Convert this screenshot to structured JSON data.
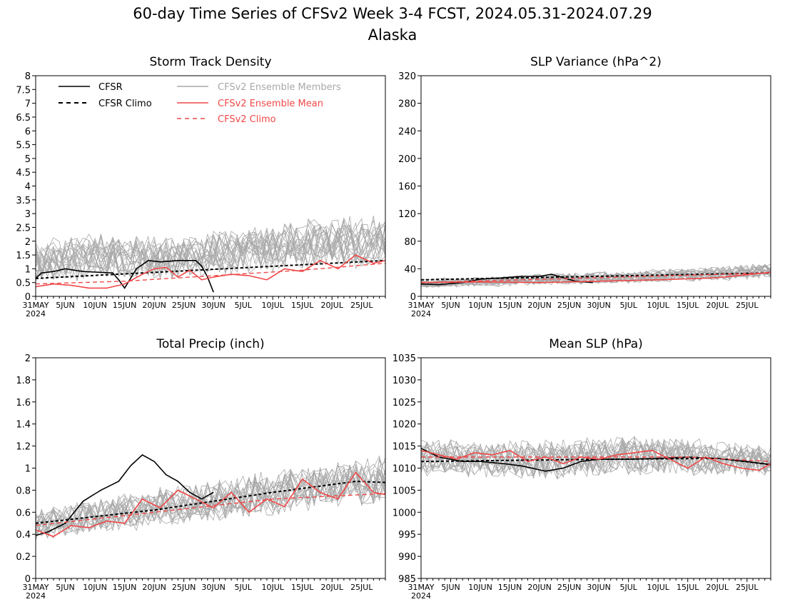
{
  "figure": {
    "title_line1": "60-day Time Series of CFSv2 Week 3-4 FCST, 2024.05.31-2024.07.29",
    "title_line2": "Alaska"
  },
  "legend": {
    "cfsr": "CFSR",
    "cfsr_climo": "CFSR Climo",
    "members": "CFSv2 Ensemble Members",
    "ens_mean": "CFSv2 Ensemble Mean",
    "cfsv2_climo": "CFSv2 Climo"
  },
  "colors": {
    "cfsr": "#000000",
    "members": "#a8a8a8",
    "ens_mean": "#f04848",
    "cfsv2_climo": "#f04848",
    "legend_members_text": "#a8a8a8",
    "legend_red_text": "#f04848"
  },
  "x_axis": {
    "start": "2024-05-31",
    "days": 60,
    "tick_labels": [
      "31MAY",
      "5JUN",
      "10JUN",
      "15JUN",
      "20JUN",
      "25JUN",
      "30JUN",
      "5JUL",
      "10JUL",
      "15JUL",
      "20JUL",
      "25JUL"
    ],
    "year_label": "2024"
  },
  "chart_data": [
    {
      "type": "line",
      "title": "Storm Track Density",
      "ylim": [
        0,
        8
      ],
      "yticks": [
        "0",
        "0.5",
        "1",
        "1.5",
        "2",
        "2.5",
        "3",
        "3.5",
        "4",
        "4.5",
        "5",
        "5.5",
        "6",
        "6.5",
        "7",
        "7.5",
        "8"
      ],
      "ytick_values": [
        0,
        0.5,
        1,
        1.5,
        2,
        2.5,
        3,
        3.5,
        4,
        4.5,
        5,
        5.5,
        6,
        6.5,
        7,
        7.5,
        8
      ],
      "series": [
        {
          "name": "CFSR",
          "x": [
            "2024-05-31",
            "2024-06-01",
            "2024-06-03",
            "2024-06-05",
            "2024-06-08",
            "2024-06-13",
            "2024-06-14",
            "2024-06-15",
            "2024-06-17",
            "2024-06-19",
            "2024-06-21",
            "2024-06-24",
            "2024-06-27",
            "2024-06-28",
            "2024-06-29",
            "2024-06-30"
          ],
          "values": [
            0.65,
            0.85,
            0.9,
            1.0,
            0.9,
            0.85,
            0.6,
            0.3,
            1.0,
            1.3,
            1.25,
            1.3,
            1.3,
            1.1,
            0.7,
            0.15
          ]
        },
        {
          "name": "CFSR Climo",
          "x": [
            "2024-05-31",
            "2024-07-29"
          ],
          "values": [
            0.65,
            1.3
          ]
        },
        {
          "name": "CFSv2 Climo",
          "x": [
            "2024-05-31",
            "2024-06-15",
            "2024-06-30",
            "2024-07-15",
            "2024-07-29"
          ],
          "values": [
            0.45,
            0.55,
            0.75,
            0.95,
            1.2
          ]
        },
        {
          "name": "CFSv2 Ensemble Mean",
          "x": [
            "2024-05-31",
            "2024-06-03",
            "2024-06-06",
            "2024-06-09",
            "2024-06-12",
            "2024-06-15",
            "2024-06-18",
            "2024-06-20",
            "2024-06-22",
            "2024-06-24",
            "2024-06-26",
            "2024-06-28",
            "2024-06-30",
            "2024-07-03",
            "2024-07-06",
            "2024-07-09",
            "2024-07-12",
            "2024-07-15",
            "2024-07-18",
            "2024-07-21",
            "2024-07-24",
            "2024-07-27",
            "2024-07-29"
          ],
          "values": [
            0.35,
            0.45,
            0.4,
            0.3,
            0.3,
            0.45,
            0.8,
            1.0,
            1.05,
            0.7,
            0.95,
            0.6,
            0.7,
            0.8,
            0.75,
            0.6,
            1.0,
            0.9,
            1.3,
            1.0,
            1.5,
            1.2,
            1.3
          ]
        }
      ],
      "member_band": {
        "low": [
          0.05,
          0.15,
          0.2,
          0.3,
          0.4,
          0.5
        ],
        "high": [
          2.5,
          2.8,
          2.6,
          3.0,
          3.4,
          3.5
        ]
      }
    },
    {
      "type": "line",
      "title": "SLP Variance (hPa^2)",
      "ylim": [
        0,
        320
      ],
      "yticks": [
        "0",
        "40",
        "80",
        "120",
        "160",
        "200",
        "240",
        "280",
        "320"
      ],
      "ytick_values": [
        0,
        40,
        80,
        120,
        160,
        200,
        240,
        280,
        320
      ],
      "series": [
        {
          "name": "CFSR",
          "x": [
            "2024-05-31",
            "2024-06-03",
            "2024-06-07",
            "2024-06-10",
            "2024-06-14",
            "2024-06-17",
            "2024-06-20",
            "2024-06-22",
            "2024-06-24",
            "2024-06-26",
            "2024-06-29"
          ],
          "values": [
            18,
            17,
            20,
            25,
            27,
            29,
            29,
            32,
            27,
            22,
            20
          ]
        },
        {
          "name": "CFSR Climo",
          "x": [
            "2024-05-31",
            "2024-07-29"
          ],
          "values": [
            24,
            34
          ]
        },
        {
          "name": "CFSv2 Climo",
          "x": [
            "2024-05-31",
            "2024-07-29"
          ],
          "values": [
            20,
            34
          ]
        },
        {
          "name": "CFSv2 Ensemble Mean",
          "x": [
            "2024-05-31",
            "2024-06-10",
            "2024-06-20",
            "2024-06-30",
            "2024-07-10",
            "2024-07-20",
            "2024-07-29"
          ],
          "values": [
            20,
            21,
            20,
            22,
            24,
            27,
            35
          ]
        }
      ],
      "member_band": {
        "low": [
          8,
          10,
          12,
          14,
          16,
          20
        ],
        "high": [
          30,
          34,
          38,
          42,
          48,
          55
        ]
      }
    },
    {
      "type": "line",
      "title": "Total Precip (inch)",
      "ylim": [
        0,
        2
      ],
      "yticks": [
        "0",
        "0.2",
        "0.4",
        "0.6",
        "0.8",
        "1",
        "1.2",
        "1.4",
        "1.6",
        "1.8",
        "2"
      ],
      "ytick_values": [
        0,
        0.2,
        0.4,
        0.6,
        0.8,
        1,
        1.2,
        1.4,
        1.6,
        1.8,
        2
      ],
      "series": [
        {
          "name": "CFSR",
          "x": [
            "2024-05-31",
            "2024-06-02",
            "2024-06-05",
            "2024-06-08",
            "2024-06-11",
            "2024-06-14",
            "2024-06-16",
            "2024-06-18",
            "2024-06-20",
            "2024-06-22",
            "2024-06-24",
            "2024-06-26",
            "2024-06-28",
            "2024-06-30"
          ],
          "values": [
            0.39,
            0.42,
            0.5,
            0.7,
            0.8,
            0.88,
            1.02,
            1.12,
            1.06,
            0.94,
            0.88,
            0.78,
            0.72,
            0.78
          ]
        },
        {
          "name": "CFSR Climo",
          "x": [
            "2024-05-31",
            "2024-06-20",
            "2024-07-10",
            "2024-07-24",
            "2024-07-29"
          ],
          "values": [
            0.5,
            0.62,
            0.78,
            0.88,
            0.87
          ]
        },
        {
          "name": "CFSv2 Climo",
          "x": [
            "2024-05-31",
            "2024-06-20",
            "2024-07-10",
            "2024-07-29"
          ],
          "values": [
            0.48,
            0.6,
            0.72,
            0.77
          ]
        },
        {
          "name": "CFSv2 Ensemble Mean",
          "x": [
            "2024-05-31",
            "2024-06-03",
            "2024-06-06",
            "2024-06-09",
            "2024-06-12",
            "2024-06-15",
            "2024-06-18",
            "2024-06-21",
            "2024-06-24",
            "2024-06-27",
            "2024-06-30",
            "2024-07-03",
            "2024-07-06",
            "2024-07-09",
            "2024-07-12",
            "2024-07-15",
            "2024-07-18",
            "2024-07-21",
            "2024-07-24",
            "2024-07-27",
            "2024-07-29"
          ],
          "values": [
            0.44,
            0.38,
            0.48,
            0.46,
            0.52,
            0.5,
            0.72,
            0.64,
            0.8,
            0.72,
            0.64,
            0.78,
            0.6,
            0.72,
            0.65,
            0.9,
            0.78,
            0.72,
            0.96,
            0.78,
            0.76
          ]
        }
      ],
      "member_band": {
        "low": [
          0.25,
          0.32,
          0.38,
          0.44,
          0.5,
          0.55
        ],
        "high": [
          0.7,
          0.85,
          0.95,
          1.05,
          1.15,
          1.25
        ]
      }
    },
    {
      "type": "line",
      "title": "Mean SLP (hPa)",
      "ylim": [
        985,
        1035
      ],
      "yticks": [
        "985",
        "990",
        "995",
        "1000",
        "1005",
        "1010",
        "1015",
        "1020",
        "1025",
        "1030",
        "1035"
      ],
      "ytick_values": [
        985,
        990,
        995,
        1000,
        1005,
        1010,
        1015,
        1020,
        1025,
        1030,
        1035
      ],
      "series": [
        {
          "name": "CFSR",
          "x": [
            "2024-05-31",
            "2024-06-03",
            "2024-06-07",
            "2024-06-10",
            "2024-06-14",
            "2024-06-17",
            "2024-06-21",
            "2024-06-24",
            "2024-06-27",
            "2024-06-30",
            "2024-07-05",
            "2024-07-10",
            "2024-07-15",
            "2024-07-20",
            "2024-07-25",
            "2024-07-29"
          ],
          "values": [
            1014.5,
            1012.5,
            1011.5,
            1011.5,
            1011.0,
            1010.5,
            1009.3,
            1010.0,
            1011.5,
            1012.0,
            1012.0,
            1012.2,
            1012.5,
            1012.2,
            1011.5,
            1010.8
          ]
        },
        {
          "name": "CFSR Climo",
          "x": [
            "2024-05-31",
            "2024-06-30",
            "2024-07-20",
            "2024-07-29"
          ],
          "values": [
            1011.5,
            1012.0,
            1012.2,
            1010.8
          ]
        },
        {
          "name": "CFSv2 Climo",
          "x": [
            "2024-05-31",
            "2024-07-15",
            "2024-07-29"
          ],
          "values": [
            1012.5,
            1012.5,
            1011.5
          ]
        },
        {
          "name": "CFSv2 Ensemble Mean",
          "x": [
            "2024-05-31",
            "2024-06-03",
            "2024-06-06",
            "2024-06-09",
            "2024-06-12",
            "2024-06-15",
            "2024-06-18",
            "2024-06-21",
            "2024-06-24",
            "2024-06-27",
            "2024-06-30",
            "2024-07-03",
            "2024-07-06",
            "2024-07-09",
            "2024-07-12",
            "2024-07-15",
            "2024-07-18",
            "2024-07-21",
            "2024-07-24",
            "2024-07-27",
            "2024-07-29"
          ],
          "values": [
            1014.0,
            1013.0,
            1012.0,
            1013.5,
            1013.0,
            1014.0,
            1011.5,
            1012.5,
            1011.0,
            1012.5,
            1012.0,
            1013.0,
            1013.5,
            1014.0,
            1012.0,
            1010.0,
            1012.5,
            1011.0,
            1010.0,
            1009.5,
            1011.0
          ]
        }
      ],
      "member_band": {
        "low": [
          1006,
          1005,
          1005,
          1006,
          1006,
          1006
        ],
        "high": [
          1019,
          1019,
          1019,
          1020,
          1019,
          1017
        ]
      }
    }
  ]
}
